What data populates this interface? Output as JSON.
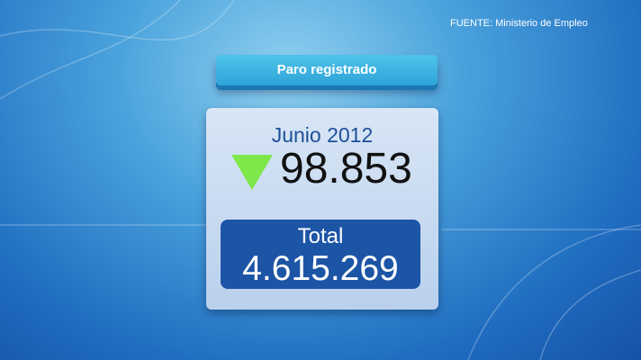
{
  "source": "FUENTE: Ministerio de Empleo",
  "header": "Paro registrado",
  "card": {
    "month": "Junio 2012",
    "change": "98.853",
    "change_direction": "down",
    "change_icon": "down-triangle-icon",
    "change_color": "#7ee84a",
    "total_label": "Total",
    "total_value": "4.615.269"
  }
}
